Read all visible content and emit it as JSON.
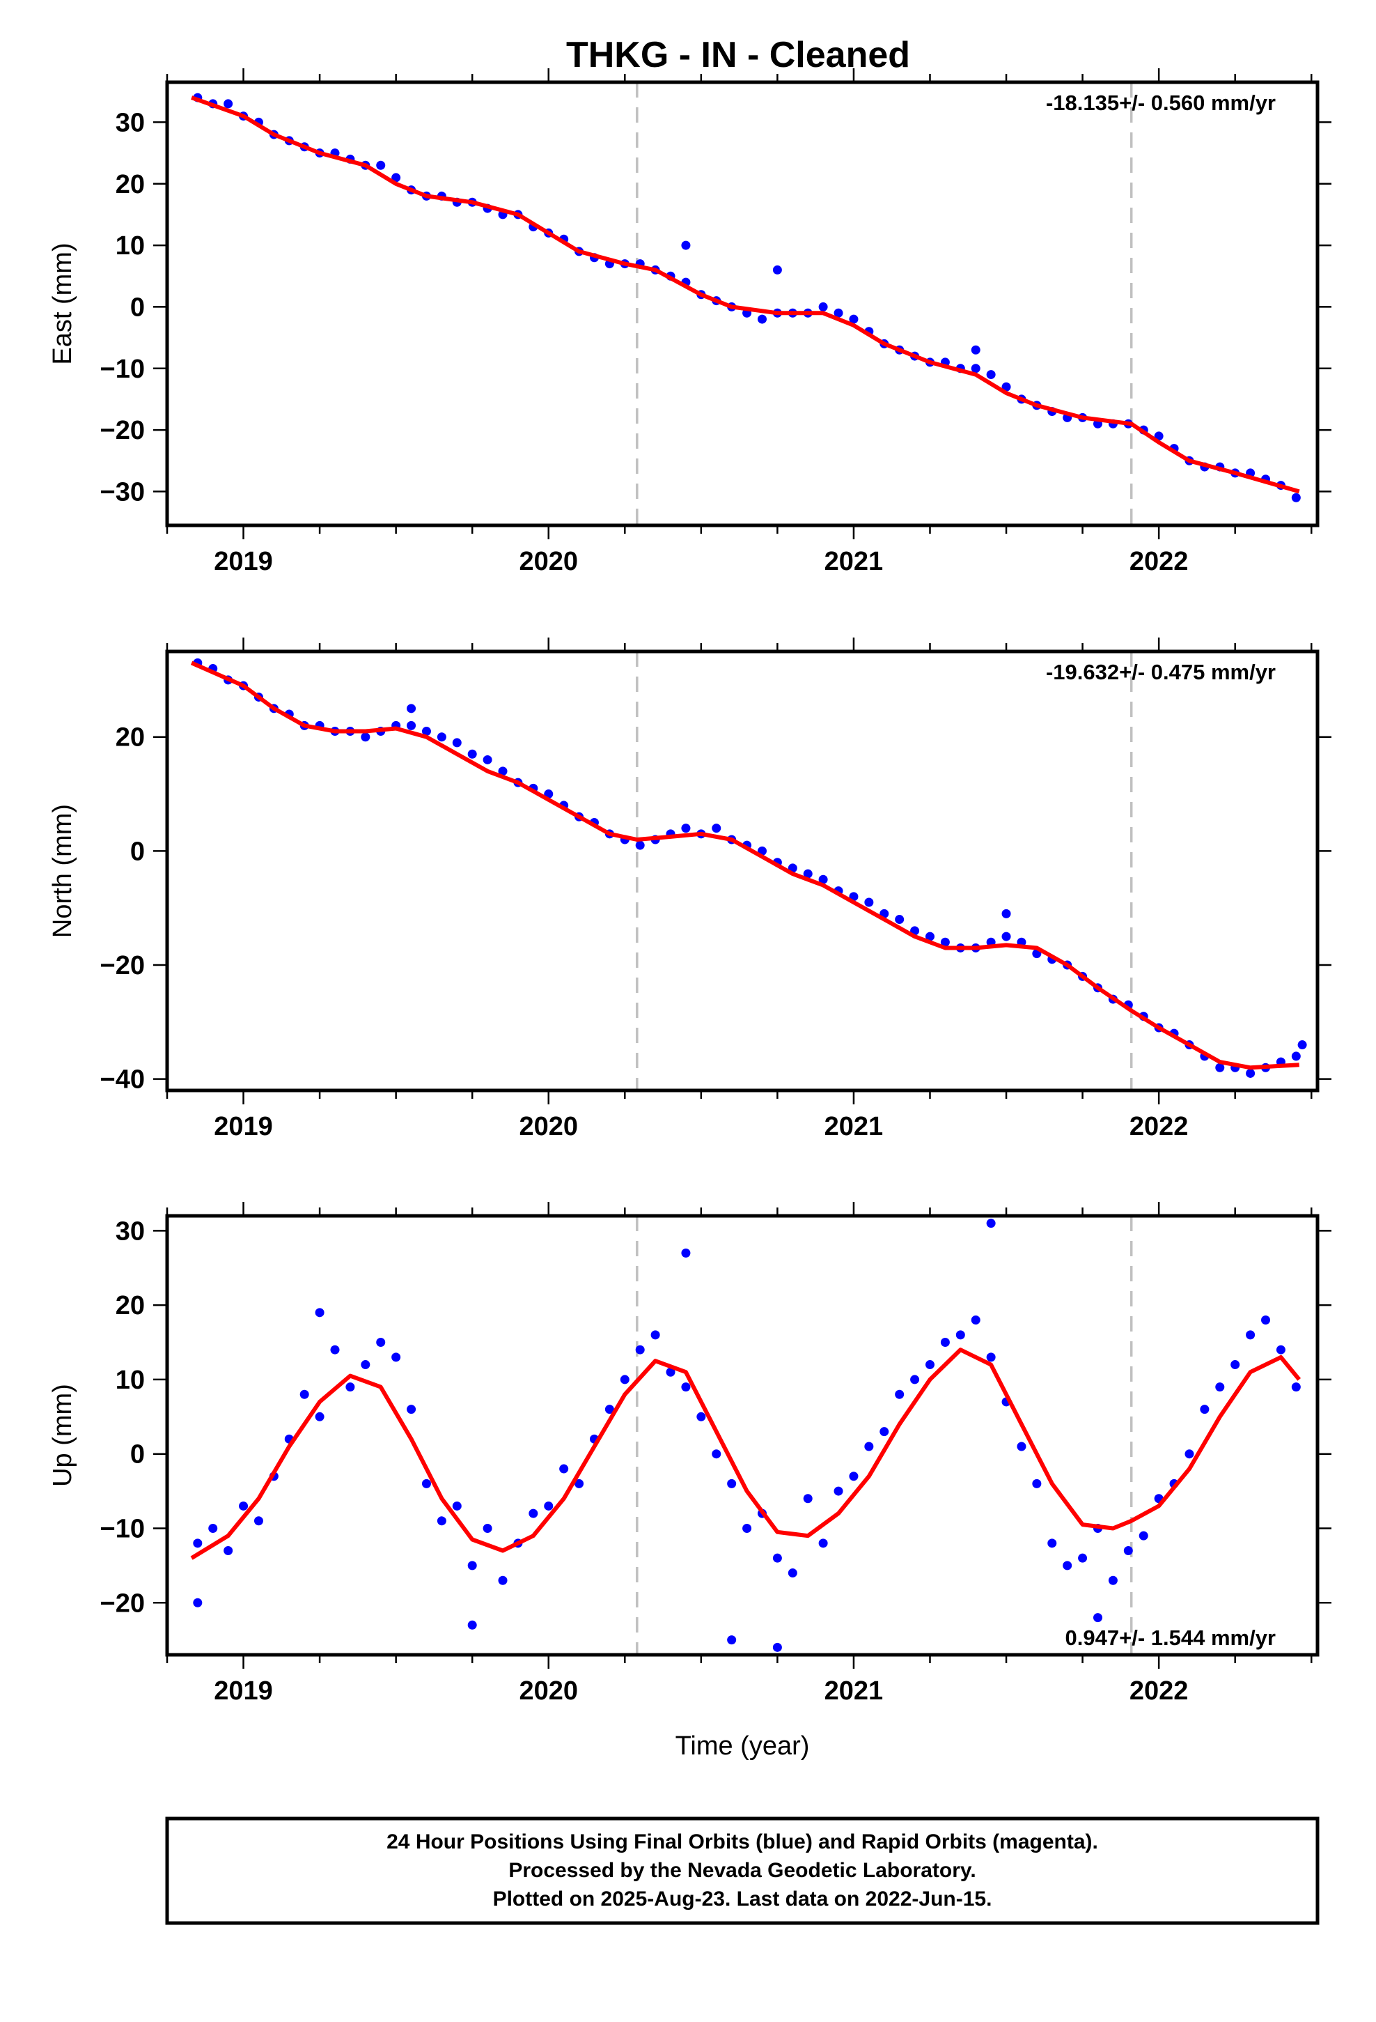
{
  "figure": {
    "title": "THKG  - IN - Cleaned",
    "footer": [
      "24 Hour Positions Using Final Orbits (blue) and Rapid Orbits (magenta).",
      "Processed by the Nevada Geodetic Laboratory.",
      "Plotted on 2025-Aug-23. Last data on 2022-Jun-15."
    ],
    "colors": {
      "data_points": "#0000ff",
      "fit_line": "#ff0000",
      "event_lines": "#c0c0c0",
      "frame": "#000000"
    }
  },
  "chart_data": [
    {
      "type": "scatter",
      "ylabel": "East (mm)",
      "xlabel": "",
      "xlim": [
        2018.75,
        2022.52
      ],
      "ylim": [
        -35.5,
        36.5
      ],
      "x_ticks": [
        2019,
        2020,
        2021,
        2022
      ],
      "x_tick_labels": [
        "2019",
        "2020",
        "2021",
        "2022"
      ],
      "y_ticks": [
        30,
        20,
        10,
        0,
        -10,
        -20,
        -30
      ],
      "y_tick_labels": [
        "30",
        "20",
        "10",
        "0",
        "−10",
        "−20",
        "−30"
      ],
      "event_lines_x": [
        2020.29,
        2021.91
      ],
      "rate_label": "-18.135+/- 0.560 mm/yr",
      "rate_label_position": "top-right",
      "grid": false,
      "fit": {
        "x": [
          2018.83,
          2019.0,
          2019.1,
          2019.25,
          2019.4,
          2019.5,
          2019.6,
          2019.75,
          2019.9,
          2020.0,
          2020.1,
          2020.25,
          2020.35,
          2020.5,
          2020.6,
          2020.75,
          2020.9,
          2021.0,
          2021.1,
          2021.25,
          2021.4,
          2021.5,
          2021.6,
          2021.75,
          2021.91,
          2022.0,
          2022.1,
          2022.25,
          2022.46
        ],
        "y": [
          34,
          31,
          28,
          25,
          23,
          20,
          18,
          17,
          15,
          12,
          9,
          7,
          6,
          2,
          0,
          -1,
          -1,
          -3,
          -6,
          -9,
          -11,
          -14,
          -16,
          -18,
          -19,
          -22,
          -25,
          -27,
          -30
        ]
      },
      "points": {
        "x": [
          2018.85,
          2018.9,
          2018.95,
          2019.0,
          2019.05,
          2019.1,
          2019.15,
          2019.2,
          2019.25,
          2019.3,
          2019.35,
          2019.4,
          2019.45,
          2019.5,
          2019.55,
          2019.6,
          2019.65,
          2019.7,
          2019.75,
          2019.8,
          2019.85,
          2019.9,
          2019.95,
          2020.0,
          2020.05,
          2020.1,
          2020.15,
          2020.2,
          2020.25,
          2020.3,
          2020.35,
          2020.4,
          2020.45,
          2020.5,
          2020.55,
          2020.6,
          2020.65,
          2020.7,
          2020.75,
          2020.8,
          2020.85,
          2020.9,
          2020.95,
          2021.0,
          2021.05,
          2021.1,
          2021.15,
          2021.2,
          2021.25,
          2021.3,
          2021.35,
          2021.4,
          2021.45,
          2021.5,
          2021.55,
          2021.6,
          2021.65,
          2021.7,
          2021.75,
          2021.8,
          2021.85,
          2021.9,
          2021.95,
          2022.0,
          2022.05,
          2022.1,
          2022.15,
          2022.2,
          2022.25,
          2022.3,
          2022.35,
          2022.4,
          2022.45,
          2020.45,
          2020.75,
          2021.4
        ],
        "y": [
          34,
          33,
          33,
          31,
          30,
          28,
          27,
          26,
          25,
          25,
          24,
          23,
          23,
          21,
          19,
          18,
          18,
          17,
          17,
          16,
          15,
          15,
          13,
          12,
          11,
          9,
          8,
          7,
          7,
          7,
          6,
          5,
          4,
          2,
          1,
          0,
          -1,
          -2,
          -1,
          -1,
          -1,
          0,
          -1,
          -2,
          -4,
          -6,
          -7,
          -8,
          -9,
          -9,
          -10,
          -10,
          -11,
          -13,
          -15,
          -16,
          -17,
          -18,
          -18,
          -19,
          -19,
          -19,
          -20,
          -21,
          -23,
          -25,
          -26,
          -26,
          -27,
          -27,
          -28,
          -29,
          -31,
          10,
          6,
          -7
        ]
      }
    },
    {
      "type": "scatter",
      "ylabel": "North (mm)",
      "xlabel": "",
      "xlim": [
        2018.75,
        2022.52
      ],
      "ylim": [
        -42,
        35
      ],
      "x_ticks": [
        2019,
        2020,
        2021,
        2022
      ],
      "x_tick_labels": [
        "2019",
        "2020",
        "2021",
        "2022"
      ],
      "y_ticks": [
        20,
        0,
        -20,
        -40
      ],
      "y_tick_labels": [
        "20",
        "0",
        "−20",
        "−40"
      ],
      "event_lines_x": [
        2020.29,
        2021.91
      ],
      "rate_label": "-19.632+/- 0.475 mm/yr",
      "rate_label_position": "top-right",
      "grid": false,
      "fit": {
        "x": [
          2018.83,
          2019.0,
          2019.1,
          2019.2,
          2019.3,
          2019.4,
          2019.5,
          2019.6,
          2019.7,
          2019.8,
          2019.9,
          2020.0,
          2020.1,
          2020.2,
          2020.29,
          2020.4,
          2020.5,
          2020.6,
          2020.7,
          2020.8,
          2020.9,
          2021.0,
          2021.1,
          2021.2,
          2021.3,
          2021.4,
          2021.5,
          2021.6,
          2021.7,
          2021.8,
          2021.91,
          2022.0,
          2022.1,
          2022.2,
          2022.3,
          2022.46
        ],
        "y": [
          33,
          29,
          25,
          22,
          21,
          21,
          21.5,
          20,
          17,
          14,
          12,
          9,
          6,
          3,
          2,
          2.5,
          3,
          2,
          -1,
          -4,
          -6,
          -9,
          -12,
          -15,
          -17,
          -17,
          -16.5,
          -17,
          -20,
          -24,
          -28,
          -31,
          -34,
          -37,
          -38,
          -37.5
        ]
      },
      "points": {
        "x": [
          2018.85,
          2018.9,
          2018.95,
          2019.0,
          2019.05,
          2019.1,
          2019.15,
          2019.2,
          2019.25,
          2019.3,
          2019.35,
          2019.4,
          2019.45,
          2019.5,
          2019.55,
          2019.6,
          2019.65,
          2019.7,
          2019.75,
          2019.8,
          2019.85,
          2019.9,
          2019.95,
          2020.0,
          2020.05,
          2020.1,
          2020.15,
          2020.2,
          2020.25,
          2020.3,
          2020.35,
          2020.4,
          2020.45,
          2020.5,
          2020.55,
          2020.6,
          2020.65,
          2020.7,
          2020.75,
          2020.8,
          2020.85,
          2020.9,
          2020.95,
          2021.0,
          2021.05,
          2021.1,
          2021.15,
          2021.2,
          2021.25,
          2021.3,
          2021.35,
          2021.4,
          2021.45,
          2021.5,
          2021.55,
          2021.6,
          2021.65,
          2021.7,
          2021.75,
          2021.8,
          2021.85,
          2021.9,
          2021.95,
          2022.0,
          2022.05,
          2022.1,
          2022.15,
          2022.2,
          2022.25,
          2022.3,
          2022.35,
          2022.4,
          2022.45,
          2019.55,
          2021.5,
          2022.47
        ],
        "y": [
          33,
          32,
          30,
          29,
          27,
          25,
          24,
          22,
          22,
          21,
          21,
          20,
          21,
          22,
          22,
          21,
          20,
          19,
          17,
          16,
          14,
          12,
          11,
          10,
          8,
          6,
          5,
          3,
          2,
          1,
          2,
          3,
          4,
          3,
          4,
          2,
          1,
          0,
          -2,
          -3,
          -4,
          -5,
          -7,
          -8,
          -9,
          -11,
          -12,
          -14,
          -15,
          -16,
          -17,
          -17,
          -16,
          -15,
          -16,
          -18,
          -19,
          -20,
          -22,
          -24,
          -26,
          -27,
          -29,
          -31,
          -32,
          -34,
          -36,
          -38,
          -38,
          -39,
          -38,
          -37,
          -36,
          25,
          -11,
          -34
        ]
      }
    },
    {
      "type": "scatter",
      "ylabel": "Up (mm)",
      "xlabel": "Time (year)",
      "xlim": [
        2018.75,
        2022.52
      ],
      "ylim": [
        -27,
        32
      ],
      "x_ticks": [
        2019,
        2020,
        2021,
        2022
      ],
      "x_tick_labels": [
        "2019",
        "2020",
        "2021",
        "2022"
      ],
      "y_ticks": [
        30,
        20,
        10,
        0,
        -10,
        -20
      ],
      "y_tick_labels": [
        "30",
        "20",
        "10",
        "0",
        "−10",
        "−20"
      ],
      "event_lines_x": [
        2020.29,
        2021.91
      ],
      "rate_label": "0.947+/- 1.544 mm/yr",
      "rate_label_position": "bottom-right",
      "grid": false,
      "fit": {
        "x": [
          2018.83,
          2018.95,
          2019.05,
          2019.15,
          2019.25,
          2019.35,
          2019.45,
          2019.55,
          2019.65,
          2019.75,
          2019.85,
          2019.95,
          2020.05,
          2020.15,
          2020.25,
          2020.35,
          2020.45,
          2020.55,
          2020.65,
          2020.75,
          2020.85,
          2020.95,
          2021.05,
          2021.15,
          2021.25,
          2021.35,
          2021.45,
          2021.55,
          2021.65,
          2021.75,
          2021.85,
          2021.91,
          2022.0,
          2022.1,
          2022.2,
          2022.3,
          2022.4,
          2022.46
        ],
        "y": [
          -14,
          -11,
          -6,
          1,
          7,
          10.5,
          9,
          2,
          -6,
          -11.5,
          -13,
          -11,
          -6,
          1,
          8,
          12.5,
          11,
          3,
          -5,
          -10.5,
          -11,
          -8,
          -3,
          4,
          10,
          14,
          12,
          4,
          -4,
          -9.5,
          -10,
          -9,
          -7,
          -2,
          5,
          11,
          13,
          10
        ]
      },
      "points": {
        "x": [
          2018.85,
          2018.9,
          2018.95,
          2019.0,
          2019.05,
          2019.1,
          2019.15,
          2019.2,
          2019.25,
          2019.3,
          2019.35,
          2019.4,
          2019.45,
          2019.5,
          2019.55,
          2019.6,
          2019.65,
          2019.7,
          2019.75,
          2019.8,
          2019.85,
          2019.9,
          2019.95,
          2020.0,
          2020.05,
          2020.1,
          2020.15,
          2020.2,
          2020.25,
          2020.3,
          2020.35,
          2020.4,
          2020.45,
          2020.5,
          2020.55,
          2020.6,
          2020.65,
          2020.7,
          2020.75,
          2020.8,
          2020.85,
          2020.9,
          2020.95,
          2021.0,
          2021.05,
          2021.1,
          2021.15,
          2021.2,
          2021.25,
          2021.3,
          2021.35,
          2021.4,
          2021.45,
          2021.5,
          2021.55,
          2021.6,
          2021.65,
          2021.7,
          2021.75,
          2021.8,
          2021.85,
          2021.9,
          2021.95,
          2022.0,
          2022.05,
          2022.1,
          2022.15,
          2022.2,
          2022.25,
          2022.3,
          2022.35,
          2022.4,
          2022.45,
          2018.85,
          2019.75,
          2020.45,
          2020.75,
          2021.45,
          2021.8,
          2019.25,
          2020.6
        ],
        "y": [
          -12,
          -10,
          -13,
          -7,
          -9,
          -3,
          2,
          8,
          5,
          14,
          9,
          12,
          15,
          13,
          6,
          -4,
          -9,
          -7,
          -15,
          -10,
          -17,
          -12,
          -8,
          -7,
          -2,
          -4,
          2,
          6,
          10,
          14,
          16,
          11,
          9,
          5,
          0,
          -4,
          -10,
          -8,
          -14,
          -16,
          -6,
          -12,
          -5,
          -3,
          1,
          3,
          8,
          10,
          12,
          15,
          16,
          18,
          13,
          7,
          1,
          -4,
          -12,
          -15,
          -14,
          -10,
          -17,
          -13,
          -11,
          -6,
          -4,
          0,
          6,
          9,
          12,
          16,
          18,
          14,
          9,
          -20,
          -23,
          27,
          -26,
          31,
          -22,
          19,
          -25
        ]
      }
    }
  ]
}
